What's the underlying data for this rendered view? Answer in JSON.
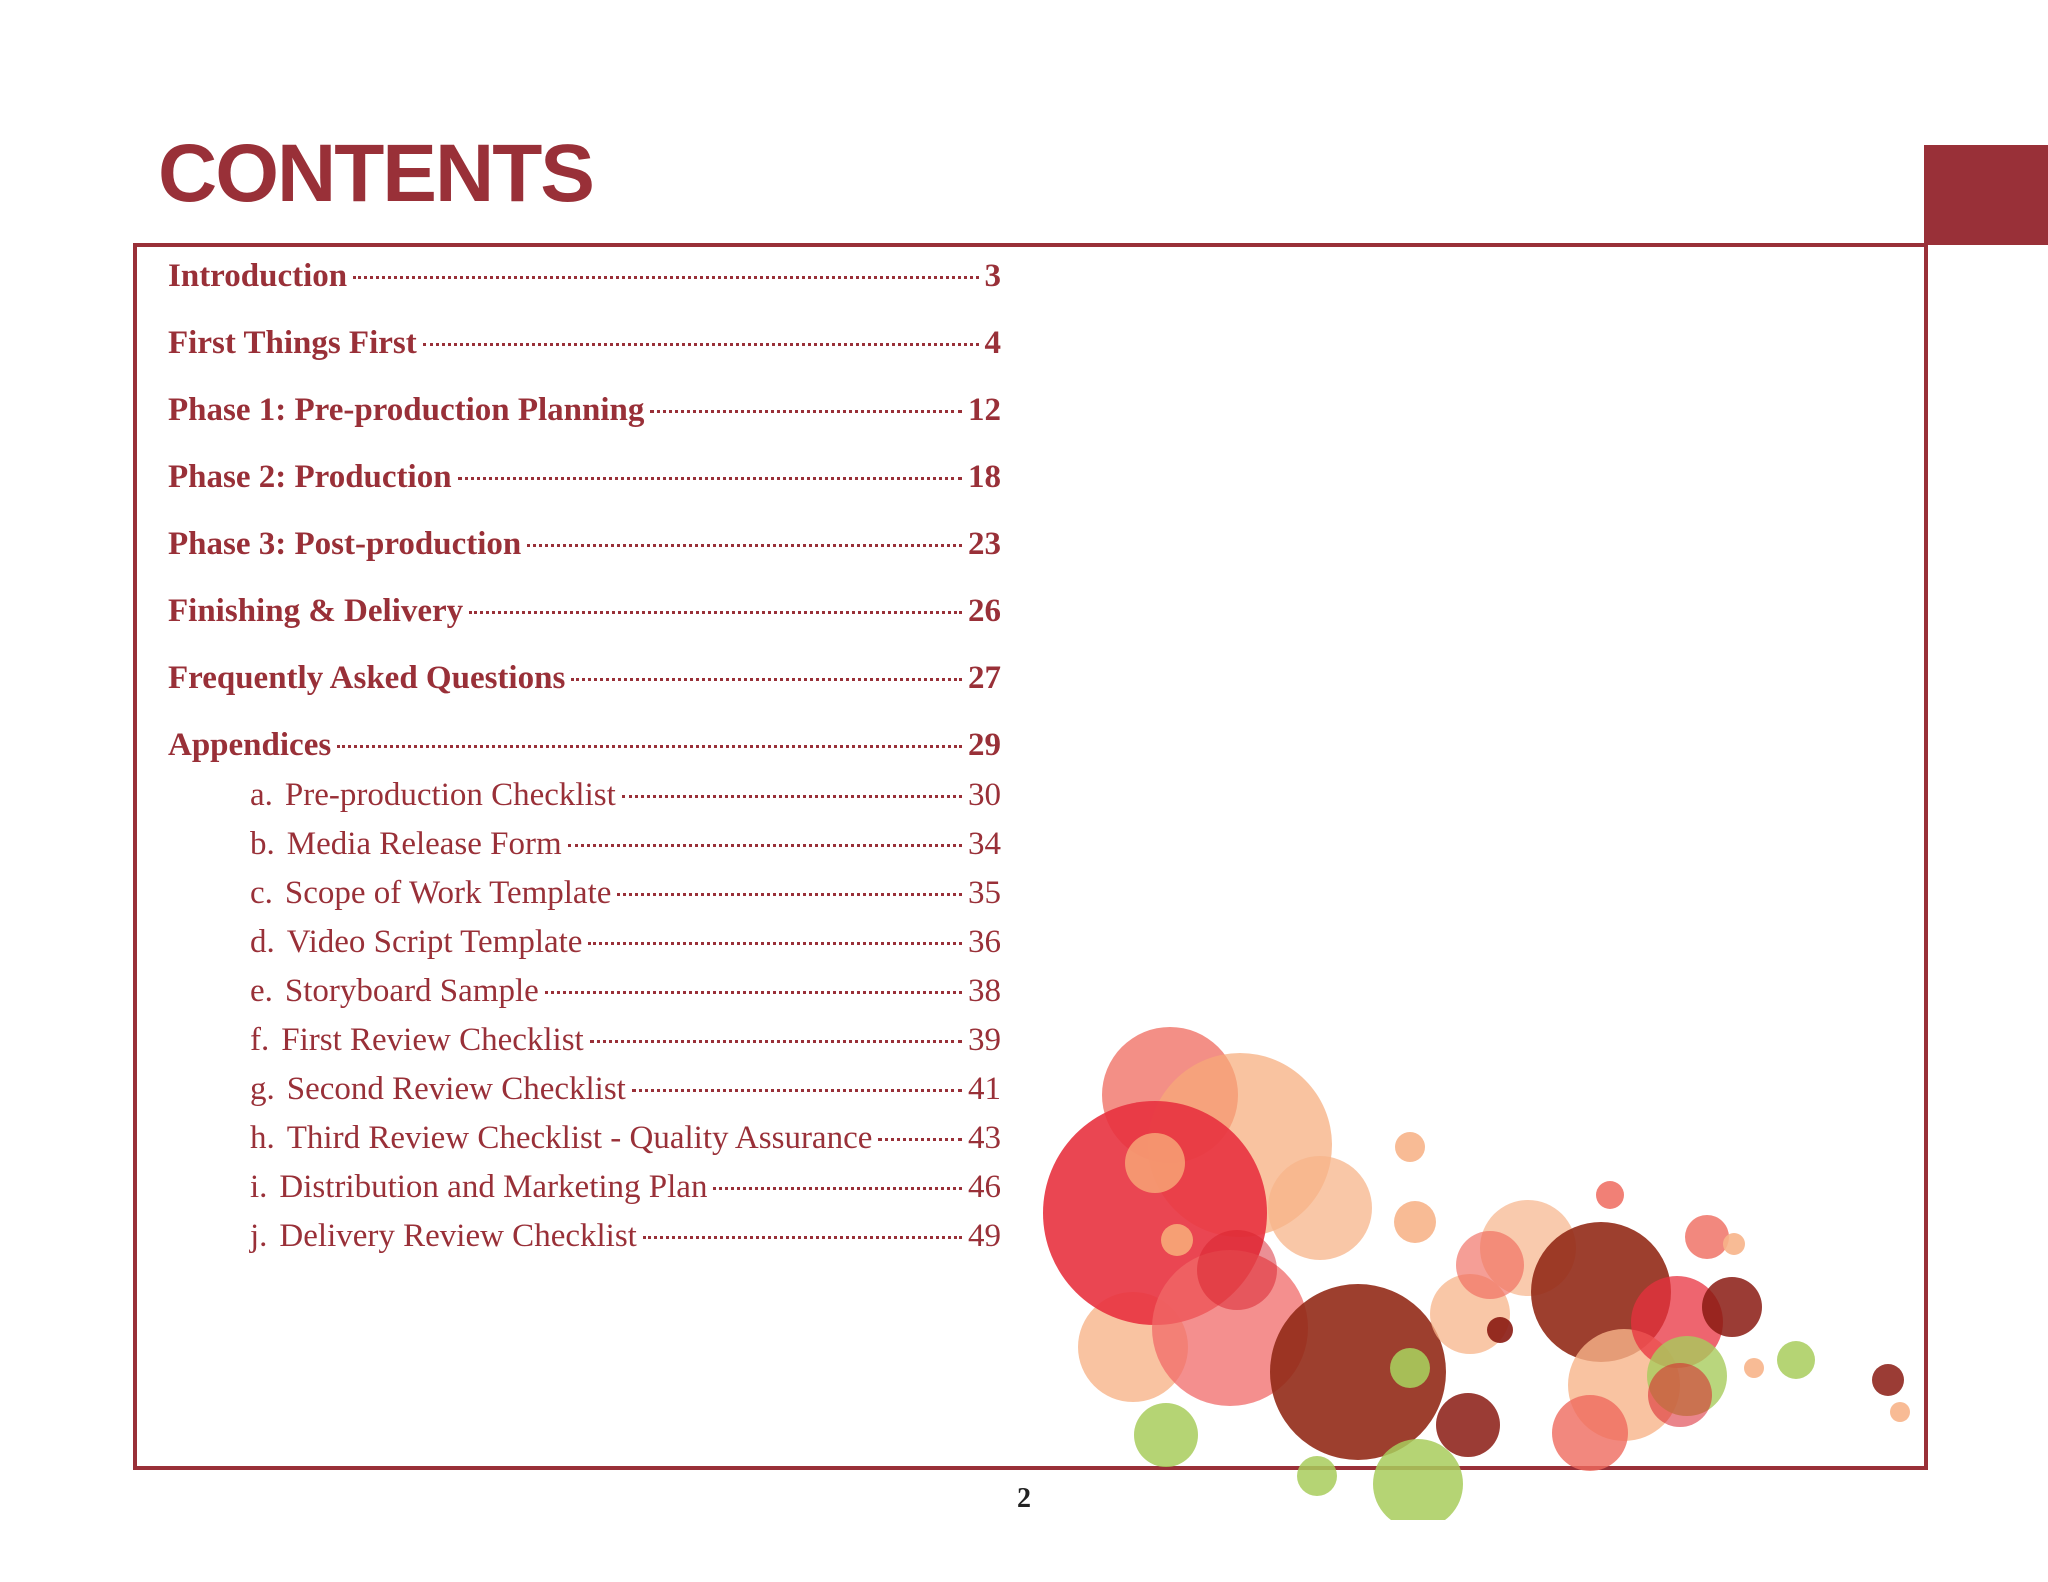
{
  "title": "CONTENTS",
  "colors": {
    "accent": "#993038"
  },
  "main_entries": [
    {
      "label": "Introduction",
      "page": "3"
    },
    {
      "label": "First Things First",
      "page": "4"
    },
    {
      "label": "Phase 1:  Pre-production Planning",
      "page": "12"
    },
    {
      "label": "Phase 2:  Production",
      "page": "18"
    },
    {
      "label": "Phase 3:  Post-production",
      "page": "23"
    },
    {
      "label": "Finishing & Delivery",
      "page": "26"
    },
    {
      "label": "Frequently Asked Questions",
      "page": "27"
    },
    {
      "label": "Appendices",
      "page": "29"
    }
  ],
  "appendix_entries": [
    {
      "prefix": "a.",
      "label": "Pre-production Checklist",
      "page": "30"
    },
    {
      "prefix": "b.",
      "label": "Media Release Form",
      "page": "34"
    },
    {
      "prefix": "c.",
      "label": "Scope of Work Template",
      "page": "35"
    },
    {
      "prefix": "d.",
      "label": "Video Script Template",
      "page": "36"
    },
    {
      "prefix": "e.",
      "label": "Storyboard Sample",
      "page": "38"
    },
    {
      "prefix": "f.",
      "label": "First Review Checklist",
      "page": "39"
    },
    {
      "prefix": "g.",
      "label": "Second Review Checklist",
      "page": "41"
    },
    {
      "prefix": "h.",
      "label": "Third Review Checklist - Quality Assurance",
      "page": "43"
    },
    {
      "prefix": "i.",
      "label": "Distribution and Marketing Plan",
      "page": "46"
    },
    {
      "prefix": "j.",
      "label": "Delivery Review Checklist",
      "page": "49"
    }
  ],
  "page_number": "2"
}
